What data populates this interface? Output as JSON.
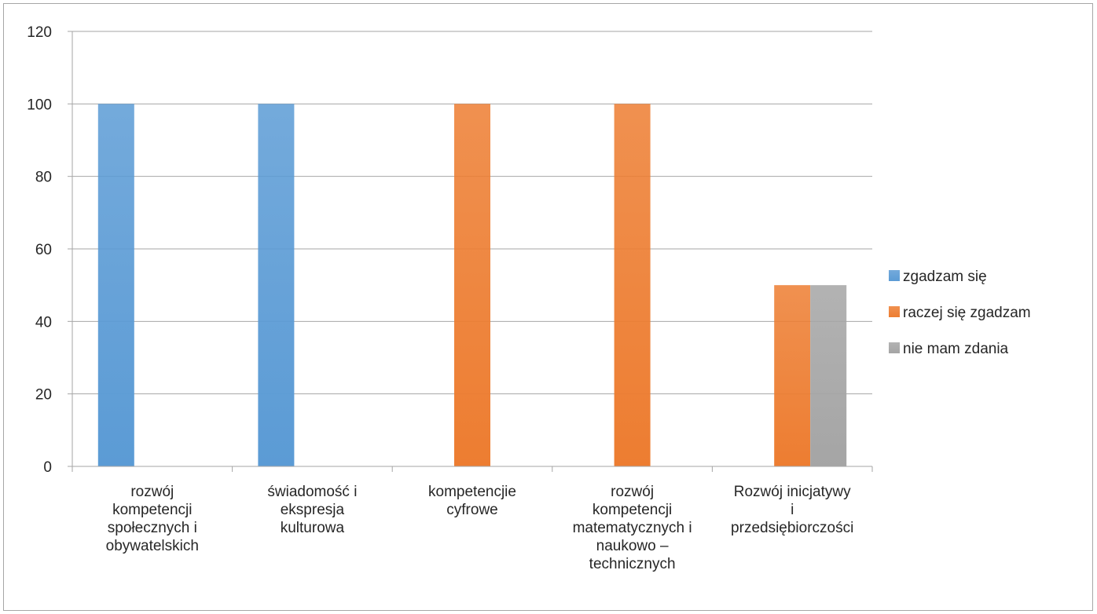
{
  "chart_data": {
    "type": "bar",
    "title": "",
    "xlabel": "",
    "ylabel": "",
    "ylim": [
      0,
      120
    ],
    "yticks": [
      0,
      20,
      40,
      60,
      80,
      100,
      120
    ],
    "grid": true,
    "legend_position": "right",
    "categories": [
      [
        "rozwój",
        "kompetencji",
        "społecznych i",
        "obywatelskich"
      ],
      [
        "świadomość i",
        "ekspresja",
        "kulturowa"
      ],
      [
        "kompetencjie",
        "cyfrowe"
      ],
      [
        "rozwój",
        "kompetencji",
        "matematycznych i",
        "naukowo –",
        "technicznych"
      ],
      [
        "Rozwój inicjatywy",
        "i",
        "przedsiębiorczości"
      ]
    ],
    "series": [
      {
        "name": "zgadzam się",
        "color": "#5b9bd5",
        "values": [
          100,
          100,
          0,
          0,
          0
        ]
      },
      {
        "name": "raczej się zgadzam",
        "color": "#ed7d31",
        "values": [
          0,
          0,
          100,
          100,
          50
        ]
      },
      {
        "name": "nie mam zdania",
        "color": "#a5a5a5",
        "values": [
          0,
          0,
          0,
          0,
          50
        ]
      }
    ]
  }
}
